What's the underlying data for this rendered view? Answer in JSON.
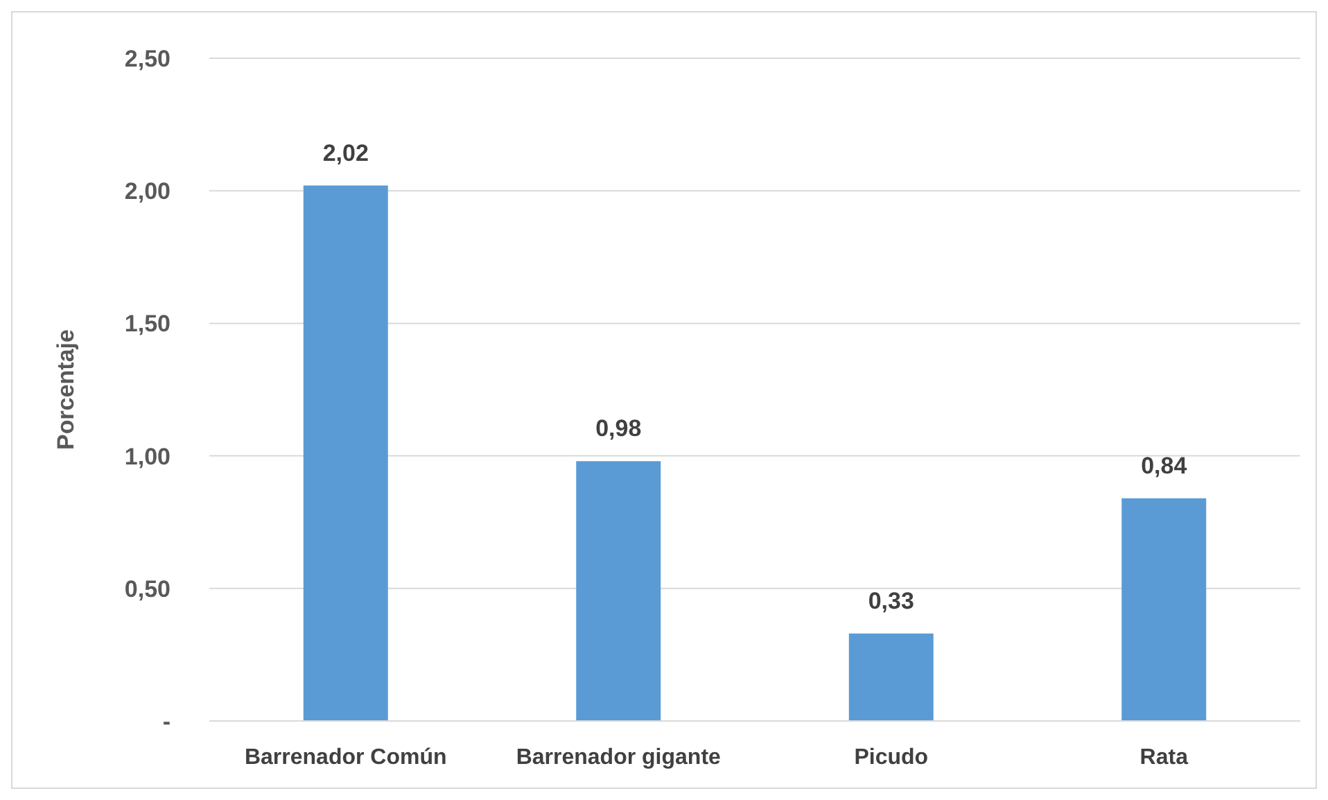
{
  "chart_data": {
    "type": "bar",
    "ylabel": "Porcentaje",
    "categories": [
      "Barrenador Común",
      "Barrenador gigante",
      "Picudo",
      "Rata"
    ],
    "values": [
      2.02,
      0.98,
      0.33,
      0.84
    ],
    "color": "#5b9bd5",
    "value_labels": [
      "2,02",
      "0,98",
      "0,33",
      "0,84"
    ],
    "ylim": [
      0,
      2.5
    ],
    "yticks": [
      {
        "value": 0,
        "label": "-"
      },
      {
        "value": 0.5,
        "label": "0,50"
      },
      {
        "value": 1,
        "label": "1,00"
      },
      {
        "value": 1.5,
        "label": "1,50"
      },
      {
        "value": 2,
        "label": "2,00"
      },
      {
        "value": 2.5,
        "label": "2,50"
      }
    ],
    "grid": true
  }
}
